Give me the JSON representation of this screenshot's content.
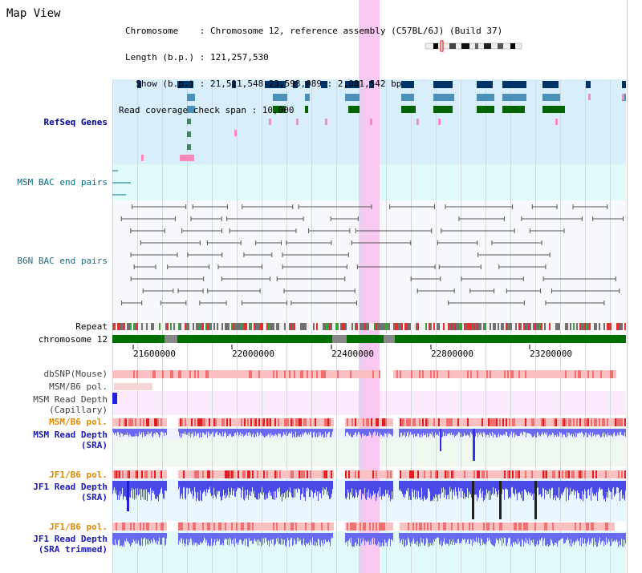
{
  "page": {
    "title": "Map View"
  },
  "info": {
    "chromosome_line": "Chromosome    : Chromosome 12, reference assembly (C57BL/6J) (Build 37)",
    "length_line": "Length (b.p.) : 121,257,530",
    "show_line": "  Show (b.p.) : 21,511,548-23,593,089 : 2,081,542 bp",
    "coverage_line": "Read coverage check span : 10,000"
  },
  "tracks": {
    "refseq": "RefSeq Genes",
    "msm_bac": "MSM BAC end pairs",
    "b6n_bac": "B6N BAC end pairs",
    "repeat": "Repeat",
    "chromosome": "chromosome 12",
    "dbsnp": "dbSNP(Mouse)",
    "msm_b6_pol_1": "MSM/B6 pol.",
    "msm_read_depth_cap": "MSM Read Depth\n(Capillary)",
    "msm_b6_pol_2": "MSM/B6 pol.",
    "msm_read_depth_sra": "MSM Read Depth\n(SRA)",
    "jf1_b6_pol_1": "JF1/B6 pol.",
    "jf1_read_depth_sra": "JF1 Read Depth\n(SRA)",
    "jf1_b6_pol_2": "JF1/B6 pol.",
    "jf1_read_depth_trim": "JF1 Read Depth\n(SRA trimmed)"
  },
  "axis": {
    "ticks": [
      "21600000",
      "22000000",
      "22400000",
      "22800000",
      "23200000"
    ]
  },
  "colors": {
    "highlight": "#f8c8f0",
    "refseq_bg": "#d8eefa",
    "msm_bac_bg": "#e0fafa",
    "gene_navy": "#003366",
    "gene_steel": "#4a90b8",
    "gene_green": "#006400",
    "chrom_green": "#007000",
    "depth_blue": "#4040ff"
  }
}
